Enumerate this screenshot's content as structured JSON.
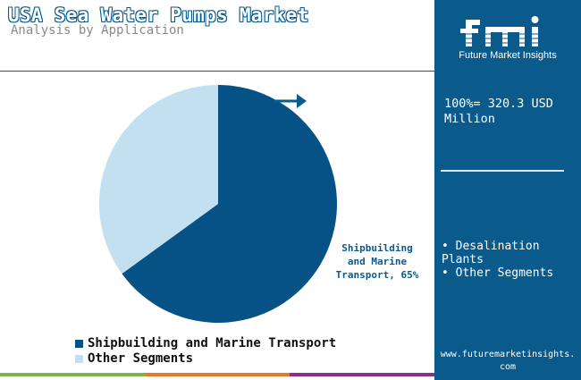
{
  "header": {
    "title": "USA Sea Water Pumps Market",
    "subtitle": "Analysis by Application"
  },
  "colors": {
    "brand": "#0a5a8c",
    "primary_slice": "#065287",
    "secondary_slice": "#c2e0f0",
    "bottom_bar": [
      "#7ab648",
      "#e9792a",
      "#8b2f8c"
    ]
  },
  "chart_data": {
    "type": "pie",
    "title": "",
    "slices": [
      {
        "name": "Shipbuilding and Marine Transport",
        "value": 65,
        "color": "#065287"
      },
      {
        "name": "Other Segments",
        "value": 35,
        "color": "#c2e0f0"
      }
    ],
    "slice_label": "Shipbuilding and Marine Transport, 65%",
    "legend_position": "bottom-left",
    "legend": [
      "Shipbuilding and Marine Transport",
      "Other Segments"
    ]
  },
  "side_panel": {
    "logo_text": "Future Market Insights",
    "total": "100%= 320.3 USD Million",
    "segments": [
      "• Desalination Plants",
      "• Other Segments"
    ],
    "url": "www.futuremarketinsights.com"
  }
}
